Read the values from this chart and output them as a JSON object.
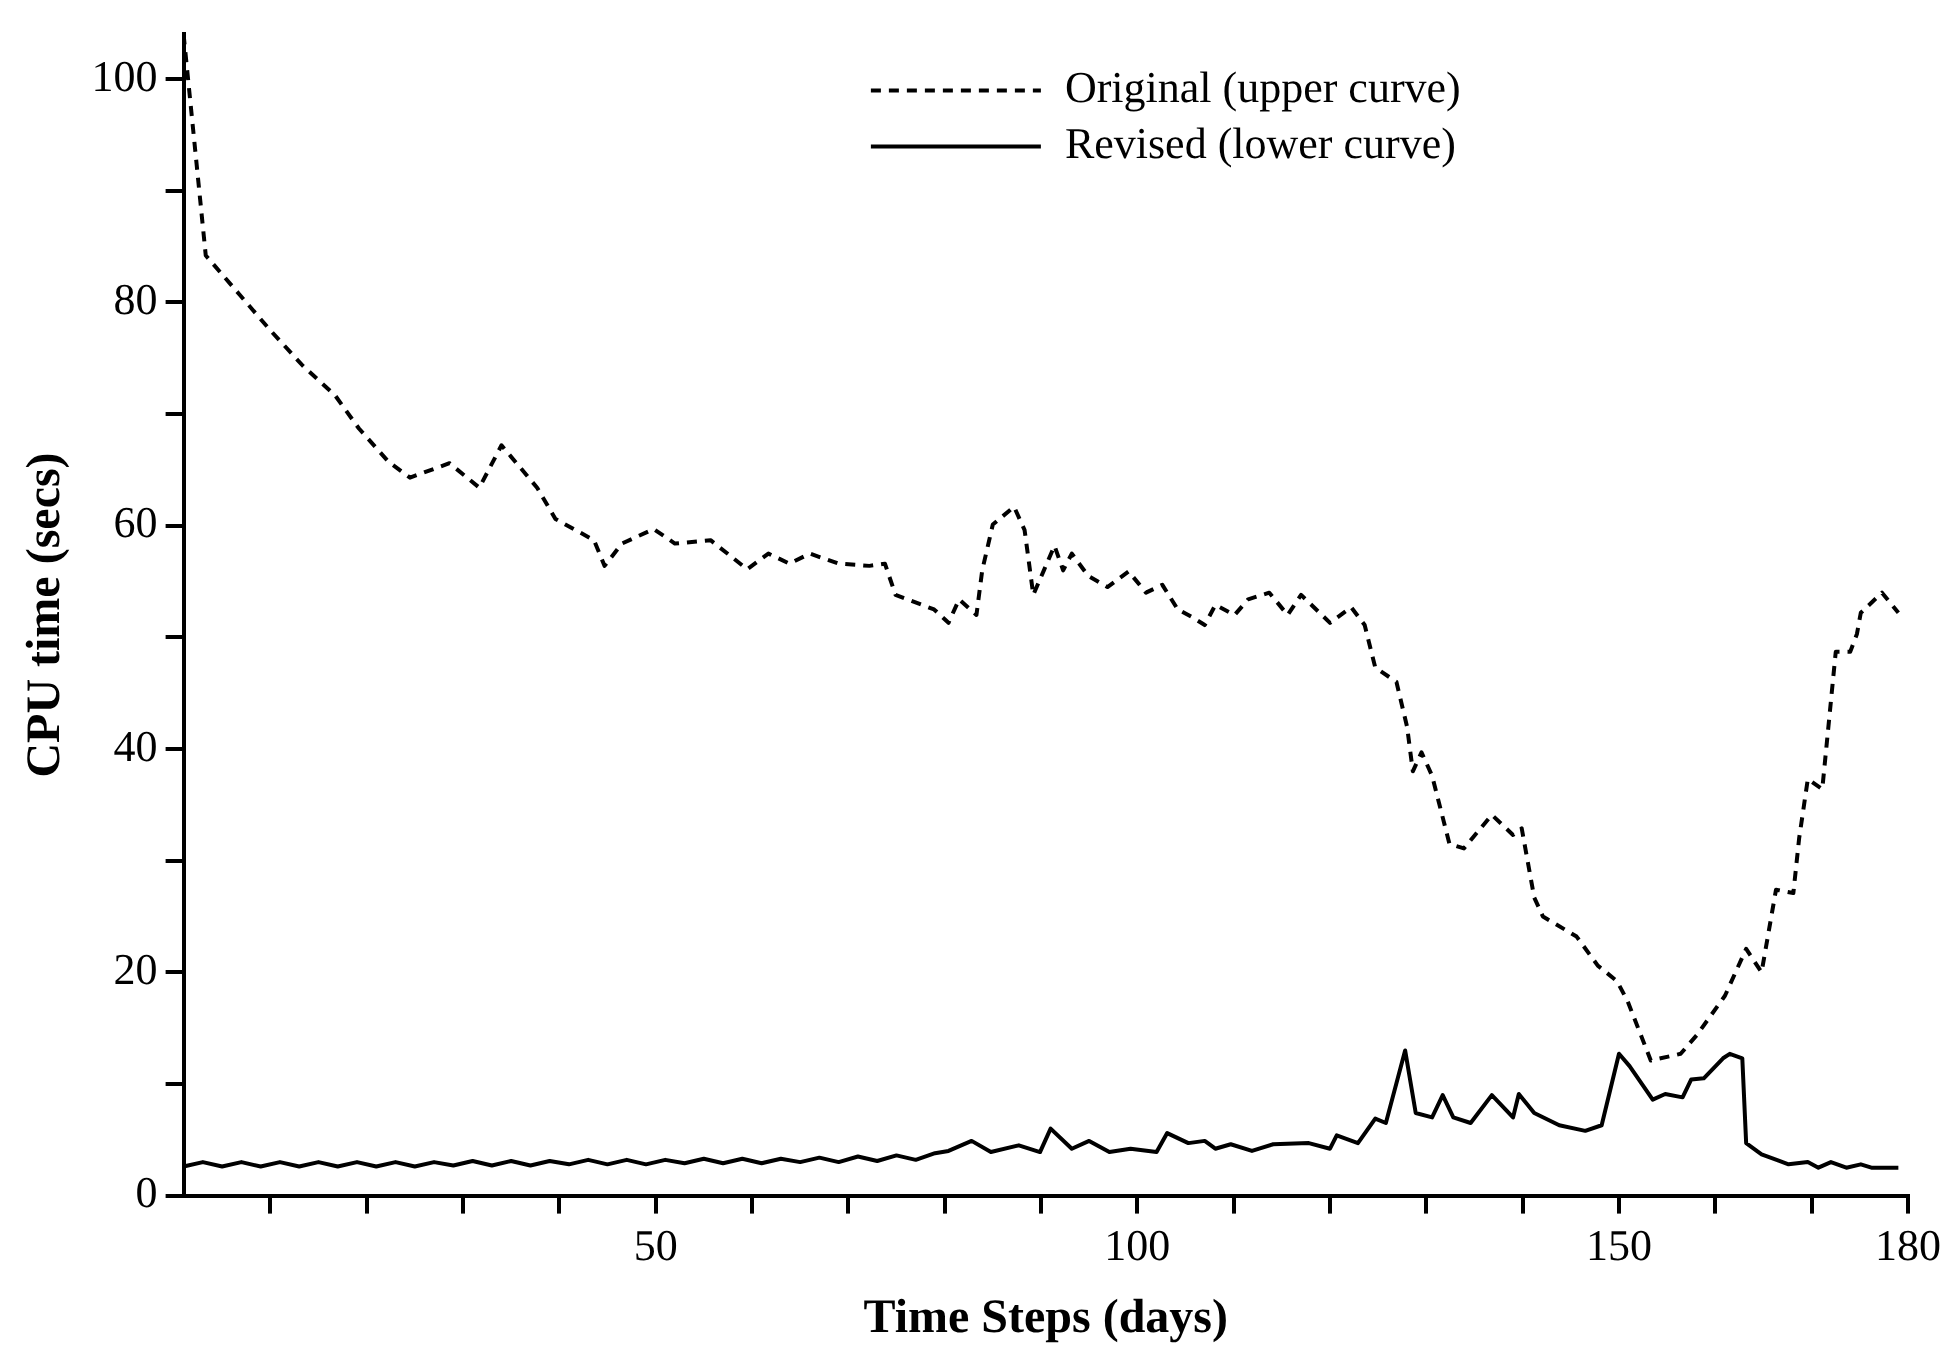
{
  "chart_data": {
    "type": "line",
    "xlabel": "Time Steps (days)",
    "ylabel": "CPU time (secs)",
    "xlim": [
      1,
      180
    ],
    "ylim": [
      0,
      104
    ],
    "xticks": [
      {
        "value": 10,
        "label": null
      },
      {
        "value": 20,
        "label": null
      },
      {
        "value": 30,
        "label": null
      },
      {
        "value": 40,
        "label": null
      },
      50,
      {
        "value": 60,
        "label": null
      },
      {
        "value": 70,
        "label": null
      },
      {
        "value": 80,
        "label": null
      },
      {
        "value": 90,
        "label": null
      },
      100,
      {
        "value": 110,
        "label": null
      },
      {
        "value": 120,
        "label": null
      },
      {
        "value": 130,
        "label": null
      },
      {
        "value": 140,
        "label": null
      },
      150,
      {
        "value": 160,
        "label": null
      },
      {
        "value": 170,
        "label": null
      },
      180
    ],
    "yticks": [
      0,
      {
        "value": 10,
        "label": null
      },
      20,
      {
        "value": 30,
        "label": null
      },
      40,
      {
        "value": 50,
        "label": null
      },
      60,
      {
        "value": 70,
        "label": null
      },
      80,
      {
        "value": 90,
        "label": null
      },
      100
    ],
    "grid": false,
    "legend": "top",
    "marker": "none",
    "series": [
      {
        "name": "Original (upper curve)",
        "color": "#000000",
        "line_style": "dashed",
        "x": [
          1,
          3.3,
          6.8,
          10,
          13.4,
          16.7,
          19.2,
          22.3,
          24.5,
          28.6,
          31.7,
          34,
          37.7,
          39.6,
          43.6,
          44.7,
          46.5,
          49.8,
          52,
          55.7,
          59.5,
          61.7,
          63.9,
          66,
          69,
          72.2,
          73.8,
          74.9,
          78.9,
          80.4,
          81.5,
          83.3,
          83.9,
          85,
          87.2,
          88.3,
          89.2,
          90.3,
          91.4,
          92.3,
          93.2,
          94.9,
          96.9,
          99.1,
          100.9,
          102.6,
          104.2,
          105.7,
          107,
          108.1,
          110.1,
          111.5,
          113.7,
          115.6,
          117,
          120,
          122.2,
          123.6,
          124.7,
          126.9,
          128,
          128.6,
          129.5,
          130.6,
          132.4,
          133.9,
          136.8,
          139,
          139.9,
          141.2,
          142.1,
          145.6,
          147.8,
          149.8,
          150.9,
          153.3,
          156.4,
          158.1,
          161,
          163.2,
          164.8,
          166.3,
          168.1,
          168.7,
          169.6,
          171.1,
          172,
          172.5,
          174,
          174.7,
          175.1,
          177.3,
          179
        ],
        "values": [
          104,
          84.2,
          80.7,
          77.5,
          74.3,
          71.7,
          68.7,
          65.7,
          64.3,
          65.6,
          63.4,
          67.2,
          63.4,
          60.6,
          58.7,
          56.4,
          58.4,
          59.7,
          58.4,
          58.7,
          56.1,
          57.5,
          56.6,
          57.5,
          56.6,
          56.4,
          56.6,
          53.8,
          52.5,
          51.3,
          53.4,
          52,
          56,
          60.1,
          61.7,
          59.6,
          53.8,
          56,
          58.2,
          56,
          57.5,
          55.5,
          54.5,
          55.9,
          54,
          54.7,
          52.5,
          51.8,
          51.1,
          52.9,
          52,
          53.4,
          54,
          52,
          53.8,
          51.3,
          52.7,
          51.1,
          47.3,
          46,
          42,
          38,
          39.7,
          37.6,
          31.5,
          31.1,
          34.1,
          32.3,
          32.9,
          26.7,
          25,
          23.2,
          20.6,
          19.2,
          17.4,
          12.1,
          12.7,
          14.4,
          17.9,
          22.1,
          20,
          27.4,
          27.1,
          32,
          37.3,
          36.4,
          44.3,
          48.7,
          48.7,
          50.3,
          52.2,
          54,
          52.2
        ]
      },
      {
        "name": "Revised (lower curve)",
        "color": "#000000",
        "line_style": "solid",
        "x": [
          1,
          3,
          5,
          7,
          9,
          11,
          13,
          15,
          17,
          19,
          21,
          23,
          25,
          27,
          29,
          31,
          33,
          35,
          37,
          39,
          41,
          43,
          45,
          47,
          49,
          51,
          53,
          55,
          57,
          59,
          61,
          63,
          65,
          67,
          69,
          71,
          73,
          75,
          77,
          79,
          80.4,
          82.8,
          84.8,
          87.7,
          89.9,
          91,
          93.2,
          95,
          97.1,
          99.3,
          102,
          103.1,
          105.3,
          107,
          108.1,
          109.7,
          111.9,
          114.1,
          117.8,
          120,
          120.7,
          122.9,
          124.7,
          125.8,
          127.8,
          128.9,
          130.6,
          131.7,
          132.8,
          134.6,
          136.8,
          139,
          139.6,
          141.2,
          143.8,
          146.5,
          148.2,
          150,
          151.1,
          153.5,
          154.8,
          156.6,
          157.5,
          158.8,
          160.8,
          161.5,
          162.8,
          163.2,
          164.8,
          167.6,
          169.6,
          170.7,
          172,
          173.6,
          175.1,
          176.2,
          177.3,
          179
        ],
        "values": [
          2.6,
          3,
          2.6,
          3,
          2.6,
          3,
          2.6,
          3,
          2.6,
          3,
          2.6,
          3,
          2.6,
          3,
          2.7,
          3.1,
          2.7,
          3.1,
          2.7,
          3.1,
          2.8,
          3.2,
          2.8,
          3.2,
          2.8,
          3.2,
          2.9,
          3.3,
          2.9,
          3.3,
          2.9,
          3.3,
          3,
          3.4,
          3,
          3.5,
          3.1,
          3.6,
          3.2,
          3.8,
          4,
          4.9,
          3.9,
          4.5,
          3.9,
          6,
          4.2,
          4.9,
          3.9,
          4.2,
          3.9,
          5.6,
          4.7,
          4.9,
          4.2,
          4.6,
          4,
          4.6,
          4.7,
          4.2,
          5.4,
          4.7,
          6.9,
          6.5,
          13,
          7.4,
          7,
          9,
          7,
          6.5,
          9,
          7,
          9.1,
          7.4,
          6.3,
          5.8,
          6.3,
          12.7,
          11.6,
          8.6,
          9.1,
          8.8,
          10.4,
          10.5,
          12.3,
          12.7,
          12.3,
          4.7,
          3.7,
          2.8,
          3,
          2.5,
          3,
          2.5,
          2.8,
          2.5,
          2.5,
          2.5
        ]
      }
    ]
  }
}
